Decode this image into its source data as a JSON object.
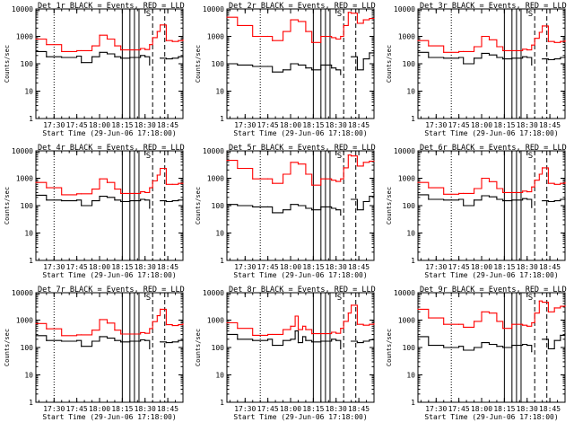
{
  "figure": {
    "xlabel": "Start Time (29-Jun-06 17:18:00)",
    "ylabel": "Counts/sec",
    "ytick_labels": [
      "1",
      "10",
      "100",
      "1000",
      "10000"
    ],
    "xtick_labels": [
      "17:30",
      "17:45",
      "18:00",
      "18:15",
      "18:30",
      "18:45"
    ],
    "colors": {
      "events": "#000000",
      "lld": "#ff0000",
      "background": "#ffffff"
    },
    "marker_symbol": "S"
  },
  "chart_data": [
    {
      "type": "line",
      "title": "Det 1r  BLACK = Events, RED = LLD",
      "xlabel": "Start Time (29-Jun-06 17:18:00)",
      "ylabel": "Counts/sec",
      "ylim": [
        1,
        10000
      ],
      "yscale": "log",
      "xlim": [
        "17:18",
        "18:55"
      ],
      "x": [
        "17:18",
        "17:25",
        "17:35",
        "17:45",
        "17:48",
        "17:55",
        "18:00",
        "18:05",
        "18:10",
        "18:14",
        "18:20",
        "18:27",
        "18:30",
        "18:33",
        "18:35",
        "18:38",
        "18:40",
        "18:44",
        "18:48",
        "18:52",
        "18:55"
      ],
      "series": [
        {
          "name": "Events",
          "values": [
            280,
            180,
            170,
            190,
            110,
            180,
            260,
            230,
            180,
            160,
            170,
            200,
            180,
            90,
            null,
            null,
            160,
            150,
            160,
            180,
            190
          ]
        },
        {
          "name": "LLD",
          "values": [
            800,
            500,
            280,
            300,
            300,
            450,
            1100,
            800,
            450,
            320,
            320,
            360,
            330,
            500,
            900,
            1500,
            2600,
            700,
            650,
            700,
            750
          ]
        }
      ],
      "vlines_dotted": [
        "17:30"
      ],
      "vlines_solid": [
        "18:15",
        "18:20",
        "18:23",
        "18:26"
      ],
      "vlines_dashed": [
        "18:35",
        "18:43"
      ]
    },
    {
      "type": "line",
      "title": "Det 2r  BLACK = Events, RED = LLD",
      "xlabel": "Start Time (29-Jun-06 17:18:00)",
      "ylabel": "Counts/sec",
      "ylim": [
        1,
        10000
      ],
      "yscale": "log",
      "xlim": [
        "17:18",
        "18:55"
      ],
      "x": [
        "17:18",
        "17:25",
        "17:35",
        "17:45",
        "17:48",
        "17:55",
        "18:00",
        "18:05",
        "18:10",
        "18:14",
        "18:20",
        "18:27",
        "18:30",
        "18:33",
        "18:35",
        "18:38",
        "18:40",
        "18:44",
        "18:48",
        "18:52",
        "18:55"
      ],
      "series": [
        {
          "name": "Events",
          "values": [
            100,
            90,
            80,
            80,
            50,
            60,
            100,
            90,
            70,
            60,
            90,
            70,
            60,
            40,
            null,
            null,
            180,
            60,
            150,
            250,
            300
          ]
        },
        {
          "name": "LLD",
          "values": [
            5000,
            2500,
            1000,
            1000,
            700,
            1500,
            4000,
            3500,
            1500,
            600,
            1000,
            900,
            800,
            1000,
            2500,
            7500,
            7000,
            3000,
            4000,
            4500,
            4500
          ]
        }
      ],
      "vlines_dotted": [
        "17:40"
      ],
      "vlines_solid": [
        "18:15",
        "18:20",
        "18:23",
        "18:26"
      ],
      "vlines_dashed": [
        "18:35",
        "18:43"
      ]
    },
    {
      "type": "line",
      "title": "Det 3r  BLACK = Events, RED = LLD",
      "xlabel": "Start Time (29-Jun-06 17:18:00)",
      "ylabel": "Counts/sec",
      "ylim": [
        1,
        10000
      ],
      "yscale": "log",
      "xlim": [
        "17:18",
        "18:55"
      ],
      "x": [
        "17:18",
        "17:25",
        "17:35",
        "17:45",
        "17:48",
        "17:55",
        "18:00",
        "18:05",
        "18:10",
        "18:14",
        "18:20",
        "18:27",
        "18:30",
        "18:33",
        "18:35",
        "18:38",
        "18:40",
        "18:44",
        "18:48",
        "18:52",
        "18:55"
      ],
      "series": [
        {
          "name": "Events",
          "values": [
            260,
            170,
            160,
            170,
            100,
            160,
            240,
            210,
            170,
            150,
            160,
            180,
            170,
            90,
            null,
            null,
            150,
            140,
            150,
            170,
            180
          ]
        },
        {
          "name": "LLD",
          "values": [
            700,
            450,
            260,
            280,
            280,
            420,
            1000,
            750,
            420,
            300,
            300,
            340,
            320,
            480,
            850,
            1400,
            2400,
            650,
            600,
            650,
            700
          ]
        }
      ],
      "vlines_dotted": [
        "17:40"
      ],
      "vlines_solid": [
        "18:15",
        "18:20",
        "18:23",
        "18:26"
      ],
      "vlines_dashed": [
        "18:35",
        "18:43"
      ]
    },
    {
      "type": "line",
      "title": "Det 4r  BLACK = Events, RED = LLD",
      "xlabel": "Start Time (29-Jun-06 17:18:00)",
      "ylabel": "Counts/sec",
      "ylim": [
        1,
        10000
      ],
      "yscale": "log",
      "xlim": [
        "17:18",
        "18:55"
      ],
      "x": [
        "17:18",
        "17:25",
        "17:35",
        "17:45",
        "17:48",
        "17:55",
        "18:00",
        "18:05",
        "18:10",
        "18:14",
        "18:20",
        "18:27",
        "18:30",
        "18:33",
        "18:35",
        "18:38",
        "18:40",
        "18:44",
        "18:48",
        "18:52",
        "18:55"
      ],
      "series": [
        {
          "name": "Events",
          "values": [
            240,
            160,
            150,
            160,
            100,
            150,
            220,
            200,
            160,
            140,
            150,
            170,
            160,
            80,
            null,
            null,
            150,
            140,
            150,
            160,
            170
          ]
        },
        {
          "name": "LLD",
          "values": [
            700,
            450,
            250,
            270,
            270,
            400,
            950,
            700,
            400,
            280,
            280,
            320,
            300,
            450,
            800,
            1300,
            2300,
            600,
            600,
            650,
            650
          ]
        }
      ],
      "vlines_dotted": [
        "17:30"
      ],
      "vlines_solid": [
        "18:15",
        "18:20",
        "18:23",
        "18:26"
      ],
      "vlines_dashed": [
        "18:35",
        "18:43"
      ]
    },
    {
      "type": "line",
      "title": "Det 5r  BLACK = Events, RED = LLD",
      "xlabel": "Start Time (29-Jun-06 17:18:00)",
      "ylabel": "Counts/sec",
      "ylim": [
        1,
        10000
      ],
      "yscale": "log",
      "xlim": [
        "17:18",
        "18:55"
      ],
      "x": [
        "17:18",
        "17:25",
        "17:35",
        "17:45",
        "17:48",
        "17:55",
        "18:00",
        "18:05",
        "18:10",
        "18:14",
        "18:20",
        "18:27",
        "18:30",
        "18:33",
        "18:35",
        "18:38",
        "18:40",
        "18:44",
        "18:48",
        "18:52",
        "18:55"
      ],
      "series": [
        {
          "name": "Events",
          "values": [
            110,
            100,
            90,
            90,
            55,
            70,
            110,
            100,
            80,
            70,
            90,
            80,
            70,
            45,
            null,
            null,
            170,
            70,
            140,
            220,
            260
          ]
        },
        {
          "name": "LLD",
          "values": [
            4500,
            2300,
            950,
            950,
            650,
            1400,
            3800,
            3300,
            1400,
            560,
            950,
            850,
            760,
            950,
            2400,
            7000,
            6500,
            2800,
            3800,
            4200,
            4200
          ]
        }
      ],
      "vlines_dotted": [
        "17:40"
      ],
      "vlines_solid": [
        "18:15",
        "18:20",
        "18:23",
        "18:26"
      ],
      "vlines_dashed": [
        "18:35",
        "18:43"
      ]
    },
    {
      "type": "line",
      "title": "Det 6r  BLACK = Events, RED = LLD",
      "xlabel": "Start Time (29-Jun-06 17:18:00)",
      "ylabel": "Counts/sec",
      "ylim": [
        1,
        10000
      ],
      "yscale": "log",
      "xlim": [
        "17:18",
        "18:55"
      ],
      "x": [
        "17:18",
        "17:25",
        "17:35",
        "17:45",
        "17:48",
        "17:55",
        "18:00",
        "18:05",
        "18:10",
        "18:14",
        "18:20",
        "18:27",
        "18:30",
        "18:33",
        "18:35",
        "18:38",
        "18:40",
        "18:44",
        "18:48",
        "18:52",
        "18:55"
      ],
      "series": [
        {
          "name": "Events",
          "values": [
            250,
            170,
            160,
            170,
            100,
            160,
            230,
            210,
            170,
            150,
            160,
            180,
            170,
            85,
            null,
            null,
            150,
            140,
            150,
            170,
            180
          ]
        },
        {
          "name": "LLD",
          "values": [
            700,
            450,
            260,
            280,
            280,
            420,
            1000,
            750,
            420,
            300,
            300,
            340,
            320,
            480,
            850,
            1400,
            2400,
            650,
            600,
            650,
            700
          ]
        }
      ],
      "vlines_dotted": [
        "17:40"
      ],
      "vlines_solid": [
        "18:15",
        "18:20",
        "18:23",
        "18:26"
      ],
      "vlines_dashed": [
        "18:35",
        "18:43"
      ]
    },
    {
      "type": "line",
      "title": "Det 7r  BLACK = Events, RED = LLD",
      "xlabel": "Start Time (29-Jun-06 17:18:00)",
      "ylabel": "Counts/sec",
      "ylim": [
        1,
        10000
      ],
      "yscale": "log",
      "xlim": [
        "17:18",
        "18:55"
      ],
      "x": [
        "17:18",
        "17:25",
        "17:35",
        "17:45",
        "17:48",
        "17:55",
        "18:00",
        "18:05",
        "18:10",
        "18:14",
        "18:20",
        "18:27",
        "18:30",
        "18:33",
        "18:35",
        "18:38",
        "18:40",
        "18:44",
        "18:48",
        "18:52",
        "18:55"
      ],
      "series": [
        {
          "name": "Events",
          "values": [
            270,
            180,
            170,
            180,
            110,
            170,
            250,
            220,
            180,
            160,
            170,
            190,
            180,
            90,
            null,
            null,
            160,
            150,
            160,
            180,
            190
          ]
        },
        {
          "name": "LLD",
          "values": [
            750,
            480,
            270,
            290,
            290,
            430,
            1050,
            780,
            430,
            310,
            310,
            350,
            330,
            490,
            880,
            1450,
            2500,
            680,
            630,
            680,
            730
          ]
        }
      ],
      "vlines_dotted": [
        "17:30"
      ],
      "vlines_solid": [
        "18:15",
        "18:20",
        "18:23",
        "18:26"
      ],
      "vlines_dashed": [
        "18:35",
        "18:43"
      ]
    },
    {
      "type": "line",
      "title": "Det 8r  BLACK = Events, RED = LLD",
      "xlabel": "Start Time (29-Jun-06 17:18:00)",
      "ylabel": "Counts/sec",
      "ylim": [
        1,
        10000
      ],
      "yscale": "log",
      "xlim": [
        "17:18",
        "18:55"
      ],
      "x": [
        "17:18",
        "17:25",
        "17:35",
        "17:45",
        "17:48",
        "17:55",
        "18:00",
        "18:03",
        "18:05",
        "18:08",
        "18:10",
        "18:14",
        "18:20",
        "18:27",
        "18:30",
        "18:33",
        "18:35",
        "18:38",
        "18:40",
        "18:44",
        "18:48",
        "18:52",
        "18:55"
      ],
      "series": [
        {
          "name": "Events",
          "values": [
            300,
            200,
            180,
            200,
            120,
            180,
            200,
            400,
            150,
            250,
            180,
            160,
            170,
            200,
            180,
            90,
            null,
            null,
            170,
            150,
            170,
            190,
            200
          ]
        },
        {
          "name": "LLD",
          "values": [
            800,
            500,
            280,
            300,
            300,
            450,
            600,
            1400,
            450,
            600,
            450,
            320,
            320,
            360,
            330,
            500,
            900,
            1800,
            3500,
            700,
            650,
            700,
            750
          ]
        }
      ],
      "vlines_dotted": [
        "17:40"
      ],
      "vlines_solid": [
        "18:15",
        "18:20",
        "18:23",
        "18:26"
      ],
      "vlines_dashed": [
        "18:35",
        "18:43"
      ]
    },
    {
      "type": "line",
      "title": "Det 9r  BLACK = Events, RED = LLD",
      "xlabel": "Start Time (29-Jun-06 17:18:00)",
      "ylabel": "Counts/sec",
      "ylim": [
        1,
        10000
      ],
      "yscale": "log",
      "xlim": [
        "17:18",
        "18:55"
      ],
      "x": [
        "17:18",
        "17:25",
        "17:35",
        "17:45",
        "17:48",
        "17:55",
        "18:00",
        "18:05",
        "18:10",
        "18:14",
        "18:20",
        "18:27",
        "18:30",
        "18:33",
        "18:35",
        "18:38",
        "18:40",
        "18:44",
        "18:48",
        "18:52",
        "18:55"
      ],
      "series": [
        {
          "name": "Events",
          "values": [
            250,
            120,
            100,
            110,
            80,
            100,
            150,
            130,
            110,
            100,
            120,
            130,
            120,
            70,
            null,
            null,
            200,
            90,
            180,
            280,
            320
          ]
        },
        {
          "name": "LLD",
          "values": [
            2500,
            1200,
            700,
            700,
            550,
            900,
            2000,
            1800,
            900,
            500,
            700,
            650,
            600,
            800,
            1800,
            5000,
            4500,
            2000,
            2800,
            3200,
            3300
          ]
        }
      ],
      "vlines_dotted": [
        "17:40"
      ],
      "vlines_solid": [
        "18:15",
        "18:20",
        "18:23",
        "18:26"
      ],
      "vlines_dashed": [
        "18:35",
        "18:43"
      ]
    }
  ]
}
